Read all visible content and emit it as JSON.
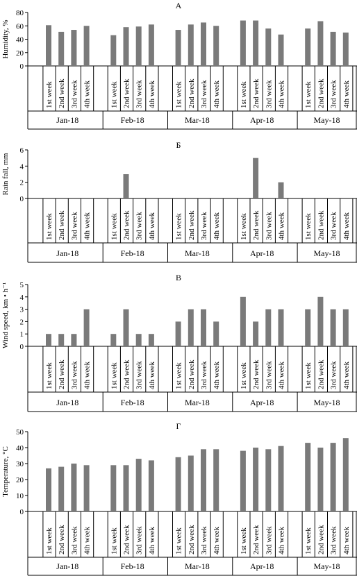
{
  "colors": {
    "bar": "#7a7a7a",
    "axis": "#000000"
  },
  "chart_data": [
    {
      "type": "bar",
      "panel_label": "А",
      "ylabel": "Humidity, %",
      "ylim": [
        0,
        80
      ],
      "yticks": [
        "0",
        "20",
        "40",
        "60",
        "80"
      ],
      "weeks": [
        "1st week",
        "2nd week",
        "3rd week",
        "4th week"
      ],
      "months": [
        "Jan-18",
        "Feb-18",
        "Mar-18",
        "Apr-18",
        "May-18"
      ],
      "values": [
        [
          61,
          51,
          54,
          60
        ],
        [
          46,
          58,
          59,
          62
        ],
        [
          54,
          62,
          65,
          60
        ],
        [
          68,
          68,
          56,
          47
        ],
        [
          56,
          67,
          51,
          50
        ]
      ]
    },
    {
      "type": "bar",
      "panel_label": "Б",
      "ylabel": "Rain fall, mm",
      "ylim": [
        0,
        6
      ],
      "yticks": [
        "0",
        "2",
        "4",
        "6"
      ],
      "weeks": [
        "1st week",
        "2nd week",
        "3rd week",
        "4th week"
      ],
      "months": [
        "Jan-18",
        "Feb-18",
        "Mar-18",
        "Apr-18",
        "May-18"
      ],
      "values": [
        [
          0,
          0,
          0,
          0
        ],
        [
          0,
          3,
          0,
          0
        ],
        [
          0,
          0,
          0,
          0
        ],
        [
          0,
          5,
          0,
          2
        ],
        [
          0,
          0,
          0,
          0
        ]
      ]
    },
    {
      "type": "bar",
      "panel_label": "В",
      "ylabel": "Wind speed, km • h⁻¹",
      "ylim": [
        0,
        5
      ],
      "yticks": [
        "0",
        "1",
        "2",
        "3",
        "4",
        "5"
      ],
      "weeks": [
        "1st week",
        "2nd week",
        "3rd week",
        "4th week"
      ],
      "months": [
        "Jan-18",
        "Feb-18",
        "Mar-18",
        "Apr-18",
        "May-18"
      ],
      "values": [
        [
          1,
          1,
          1,
          3
        ],
        [
          1,
          3,
          1,
          1
        ],
        [
          2,
          3,
          3,
          2
        ],
        [
          4,
          2,
          3,
          3
        ],
        [
          3,
          4,
          3,
          3
        ]
      ]
    },
    {
      "type": "bar",
      "panel_label": "Г",
      "ylabel": "Temperature, °C",
      "ylim": [
        0,
        50
      ],
      "yticks": [
        "0",
        "10",
        "20",
        "30",
        "40",
        "50"
      ],
      "weeks": [
        "1st week",
        "2nd week",
        "3rd week",
        "4th week"
      ],
      "months": [
        "Jan-18",
        "Feb-18",
        "Mar-18",
        "Apr-18",
        "May-18"
      ],
      "values": [
        [
          27,
          28,
          30,
          29
        ],
        [
          29,
          29,
          33,
          32
        ],
        [
          34,
          35,
          39,
          39
        ],
        [
          38,
          40,
          39,
          41
        ],
        [
          43,
          40,
          43,
          46
        ]
      ]
    }
  ]
}
